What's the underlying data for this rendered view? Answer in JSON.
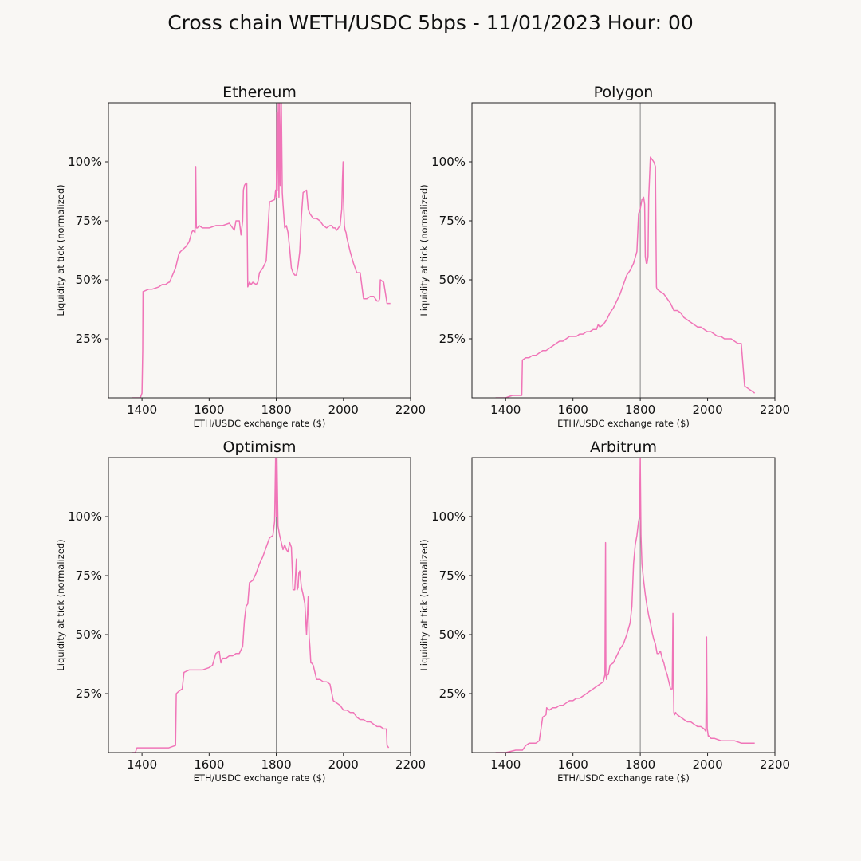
{
  "figure": {
    "title": "Cross chain WETH/USDC 5bps - 11/01/2023 Hour: 00",
    "background": "#f9f7f4",
    "line_color": "#f075b8",
    "marker_color": "#888888"
  },
  "chart_data": [
    {
      "type": "line",
      "title": "Ethereum",
      "xlabel": "ETH/USDC exchange rate ($)",
      "ylabel": "Liquidity at tick (normalized)",
      "xlim": [
        1300,
        2200
      ],
      "ylim": [
        0,
        1.25
      ],
      "xticks": [
        1400,
        1600,
        1800,
        2000,
        2200
      ],
      "yticks": [
        0.25,
        0.5,
        0.75,
        1.0
      ],
      "ytick_labels": [
        "25%",
        "50%",
        "75%",
        "100%"
      ],
      "current_price": 1800,
      "grid": false,
      "series": [
        {
          "x": [
            1370,
            1395,
            1400,
            1402,
            1403,
            1420,
            1430,
            1450,
            1460,
            1470,
            1480,
            1482,
            1500,
            1510,
            1515,
            1530,
            1540,
            1548,
            1552,
            1558,
            1560,
            1562,
            1565,
            1570,
            1580,
            1600,
            1620,
            1640,
            1660,
            1670,
            1675,
            1680,
            1690,
            1695,
            1700,
            1702,
            1705,
            1710,
            1712,
            1715,
            1720,
            1725,
            1730,
            1740,
            1745,
            1750,
            1760,
            1770,
            1780,
            1795,
            1798,
            1800,
            1802,
            1803,
            1806,
            1808,
            1810,
            1812,
            1815,
            1818,
            1820,
            1825,
            1830,
            1835,
            1840,
            1845,
            1850,
            1855,
            1860,
            1865,
            1870,
            1875,
            1880,
            1890,
            1895,
            1900,
            1905,
            1910,
            1920,
            1930,
            1940,
            1950,
            1960,
            1965,
            1970,
            1975,
            1980,
            1990,
            1995,
            1997,
            1999,
            2000,
            2003,
            2005,
            2008,
            2010,
            2020,
            2030,
            2040,
            2050,
            2060,
            2070,
            2080,
            2090,
            2095,
            2100,
            2105,
            2108,
            2110,
            2120,
            2130,
            2140
          ],
          "y": [
            0,
            0,
            0.02,
            0.2,
            0.45,
            0.46,
            0.46,
            0.47,
            0.48,
            0.48,
            0.49,
            0.49,
            0.55,
            0.61,
            0.62,
            0.64,
            0.66,
            0.7,
            0.71,
            0.7,
            0.98,
            0.72,
            0.72,
            0.73,
            0.72,
            0.72,
            0.73,
            0.73,
            0.74,
            0.72,
            0.71,
            0.75,
            0.75,
            0.69,
            0.75,
            0.88,
            0.9,
            0.91,
            0.91,
            0.47,
            0.49,
            0.48,
            0.49,
            0.48,
            0.49,
            0.53,
            0.55,
            0.58,
            0.83,
            0.84,
            0.88,
            0.85,
            1.21,
            0.88,
            1.25,
            0.85,
            1.25,
            0.9,
            1.25,
            0.87,
            0.82,
            0.72,
            0.73,
            0.7,
            0.63,
            0.55,
            0.53,
            0.52,
            0.52,
            0.56,
            0.62,
            0.77,
            0.87,
            0.88,
            0.8,
            0.78,
            0.77,
            0.76,
            0.76,
            0.75,
            0.73,
            0.72,
            0.73,
            0.73,
            0.72,
            0.72,
            0.71,
            0.73,
            0.8,
            0.92,
            1.0,
            0.85,
            0.73,
            0.71,
            0.7,
            0.68,
            0.62,
            0.57,
            0.53,
            0.53,
            0.42,
            0.42,
            0.43,
            0.43,
            0.42,
            0.41,
            0.41,
            0.42,
            0.5,
            0.49,
            0.4,
            0.4
          ]
        }
      ]
    },
    {
      "type": "line",
      "title": "Polygon",
      "xlabel": "ETH/USDC exchange rate ($)",
      "ylabel": "Liquidity at tick (normalized)",
      "xlim": [
        1300,
        2200
      ],
      "ylim": [
        0,
        1.25
      ],
      "xticks": [
        1400,
        1600,
        1800,
        2000,
        2200
      ],
      "yticks": [
        0.25,
        0.5,
        0.75,
        1.0
      ],
      "ytick_labels": [
        "25%",
        "50%",
        "75%",
        "100%"
      ],
      "current_price": 1800,
      "grid": false,
      "series": [
        {
          "x": [
            1370,
            1400,
            1420,
            1440,
            1448,
            1450,
            1460,
            1470,
            1480,
            1490,
            1500,
            1510,
            1520,
            1530,
            1540,
            1550,
            1560,
            1570,
            1580,
            1590,
            1600,
            1610,
            1620,
            1630,
            1640,
            1650,
            1660,
            1670,
            1675,
            1680,
            1690,
            1700,
            1710,
            1720,
            1730,
            1740,
            1750,
            1760,
            1770,
            1780,
            1790,
            1795,
            1800,
            1805,
            1810,
            1813,
            1815,
            1818,
            1820,
            1823,
            1825,
            1830,
            1835,
            1840,
            1845,
            1848,
            1850,
            1860,
            1870,
            1875,
            1880,
            1890,
            1900,
            1910,
            1920,
            1930,
            1940,
            1950,
            1960,
            1970,
            1980,
            1990,
            2000,
            2010,
            2020,
            2030,
            2040,
            2050,
            2060,
            2070,
            2080,
            2090,
            2095,
            2100,
            2110,
            2120,
            2130,
            2140
          ],
          "y": [
            0,
            0,
            0.01,
            0.01,
            0.01,
            0.16,
            0.17,
            0.17,
            0.18,
            0.18,
            0.19,
            0.2,
            0.2,
            0.21,
            0.22,
            0.23,
            0.24,
            0.24,
            0.25,
            0.26,
            0.26,
            0.26,
            0.27,
            0.27,
            0.28,
            0.28,
            0.29,
            0.29,
            0.31,
            0.3,
            0.31,
            0.33,
            0.36,
            0.38,
            0.41,
            0.44,
            0.48,
            0.52,
            0.54,
            0.57,
            0.62,
            0.78,
            0.8,
            0.84,
            0.85,
            0.82,
            0.6,
            0.57,
            0.57,
            0.6,
            0.85,
            1.02,
            1.01,
            1.0,
            0.98,
            0.47,
            0.46,
            0.45,
            0.44,
            0.43,
            0.42,
            0.4,
            0.37,
            0.37,
            0.36,
            0.34,
            0.33,
            0.32,
            0.31,
            0.3,
            0.3,
            0.29,
            0.28,
            0.28,
            0.27,
            0.26,
            0.26,
            0.25,
            0.25,
            0.25,
            0.24,
            0.23,
            0.23,
            0.23,
            0.05,
            0.04,
            0.03,
            0.02
          ]
        }
      ]
    },
    {
      "type": "line",
      "title": "Optimism",
      "xlabel": "ETH/USDC exchange rate ($)",
      "ylabel": "Liquidity at tick (normalized)",
      "xlim": [
        1300,
        2200
      ],
      "ylim": [
        0,
        1.25
      ],
      "xticks": [
        1400,
        1600,
        1800,
        2000,
        2200
      ],
      "yticks": [
        0.25,
        0.5,
        0.75,
        1.0
      ],
      "ytick_labels": [
        "25%",
        "50%",
        "75%",
        "100%"
      ],
      "current_price": 1800,
      "grid": false,
      "series": [
        {
          "x": [
            1370,
            1380,
            1385,
            1400,
            1420,
            1450,
            1480,
            1500,
            1502,
            1510,
            1520,
            1525,
            1540,
            1560,
            1580,
            1600,
            1610,
            1620,
            1630,
            1635,
            1640,
            1650,
            1660,
            1670,
            1680,
            1690,
            1700,
            1705,
            1710,
            1715,
            1720,
            1730,
            1740,
            1750,
            1760,
            1770,
            1780,
            1790,
            1795,
            1798,
            1800,
            1802,
            1805,
            1810,
            1820,
            1825,
            1830,
            1835,
            1840,
            1845,
            1850,
            1855,
            1860,
            1862,
            1865,
            1867,
            1870,
            1875,
            1880,
            1885,
            1890,
            1895,
            1898,
            1900,
            1903,
            1905,
            1910,
            1920,
            1930,
            1940,
            1950,
            1960,
            1970,
            1980,
            1990,
            2000,
            2010,
            2020,
            2030,
            2040,
            2050,
            2060,
            2070,
            2080,
            2090,
            2100,
            2110,
            2120,
            2128,
            2130,
            2135
          ],
          "y": [
            0,
            0,
            0.02,
            0.02,
            0.02,
            0.02,
            0.02,
            0.03,
            0.25,
            0.26,
            0.27,
            0.34,
            0.35,
            0.35,
            0.35,
            0.36,
            0.37,
            0.42,
            0.43,
            0.38,
            0.4,
            0.4,
            0.41,
            0.41,
            0.42,
            0.42,
            0.45,
            0.56,
            0.62,
            0.63,
            0.72,
            0.73,
            0.76,
            0.8,
            0.83,
            0.87,
            0.91,
            0.92,
            0.98,
            1.25,
            1.0,
            1.25,
            0.96,
            0.92,
            0.86,
            0.88,
            0.86,
            0.85,
            0.89,
            0.87,
            0.69,
            0.69,
            0.82,
            0.69,
            0.7,
            0.76,
            0.77,
            0.7,
            0.67,
            0.63,
            0.5,
            0.66,
            0.49,
            0.45,
            0.38,
            0.38,
            0.37,
            0.31,
            0.31,
            0.3,
            0.3,
            0.29,
            0.22,
            0.21,
            0.2,
            0.18,
            0.18,
            0.17,
            0.17,
            0.15,
            0.14,
            0.14,
            0.13,
            0.13,
            0.12,
            0.11,
            0.11,
            0.1,
            0.1,
            0.03,
            0.02
          ]
        }
      ]
    },
    {
      "type": "line",
      "title": "Arbitrum",
      "xlabel": "ETH/USDC exchange rate ($)",
      "ylabel": "Liquidity at tick (normalized)",
      "xlim": [
        1300,
        2200
      ],
      "ylim": [
        0,
        1.25
      ],
      "xticks": [
        1400,
        1600,
        1800,
        2000,
        2200
      ],
      "yticks": [
        0.25,
        0.5,
        0.75,
        1.0
      ],
      "ytick_labels": [
        "25%",
        "50%",
        "75%",
        "100%"
      ],
      "current_price": 1800,
      "grid": false,
      "series": [
        {
          "x": [
            1370,
            1400,
            1430,
            1450,
            1460,
            1470,
            1480,
            1490,
            1500,
            1505,
            1510,
            1520,
            1522,
            1530,
            1540,
            1550,
            1560,
            1570,
            1580,
            1590,
            1600,
            1610,
            1620,
            1630,
            1640,
            1650,
            1660,
            1670,
            1680,
            1690,
            1695,
            1697,
            1698,
            1700,
            1702,
            1705,
            1710,
            1720,
            1730,
            1740,
            1750,
            1760,
            1770,
            1775,
            1780,
            1785,
            1790,
            1795,
            1798,
            1800,
            1802,
            1805,
            1810,
            1815,
            1820,
            1825,
            1830,
            1835,
            1840,
            1845,
            1850,
            1855,
            1860,
            1865,
            1870,
            1875,
            1880,
            1885,
            1890,
            1895,
            1897,
            1899,
            1900,
            1902,
            1905,
            1910,
            1920,
            1930,
            1940,
            1950,
            1960,
            1970,
            1980,
            1990,
            1995,
            1997,
            1999,
            2000,
            2002,
            2005,
            2010,
            2020,
            2040,
            2060,
            2080,
            2100,
            2120,
            2140
          ],
          "y": [
            0,
            0,
            0.01,
            0.01,
            0.03,
            0.04,
            0.04,
            0.04,
            0.05,
            0.1,
            0.15,
            0.16,
            0.19,
            0.18,
            0.19,
            0.19,
            0.2,
            0.2,
            0.21,
            0.22,
            0.22,
            0.23,
            0.23,
            0.24,
            0.25,
            0.26,
            0.27,
            0.28,
            0.29,
            0.3,
            0.33,
            0.89,
            0.33,
            0.31,
            0.33,
            0.33,
            0.37,
            0.38,
            0.41,
            0.44,
            0.46,
            0.5,
            0.55,
            0.62,
            0.8,
            0.88,
            0.92,
            0.98,
            1.0,
            1.25,
            0.92,
            0.8,
            0.73,
            0.67,
            0.62,
            0.58,
            0.55,
            0.51,
            0.48,
            0.46,
            0.42,
            0.42,
            0.43,
            0.4,
            0.38,
            0.35,
            0.33,
            0.3,
            0.27,
            0.27,
            0.59,
            0.27,
            0.17,
            0.16,
            0.17,
            0.16,
            0.15,
            0.14,
            0.13,
            0.13,
            0.12,
            0.11,
            0.11,
            0.1,
            0.09,
            0.49,
            0.1,
            0.09,
            0.07,
            0.07,
            0.06,
            0.06,
            0.05,
            0.05,
            0.05,
            0.04,
            0.04,
            0.04
          ]
        }
      ]
    }
  ]
}
